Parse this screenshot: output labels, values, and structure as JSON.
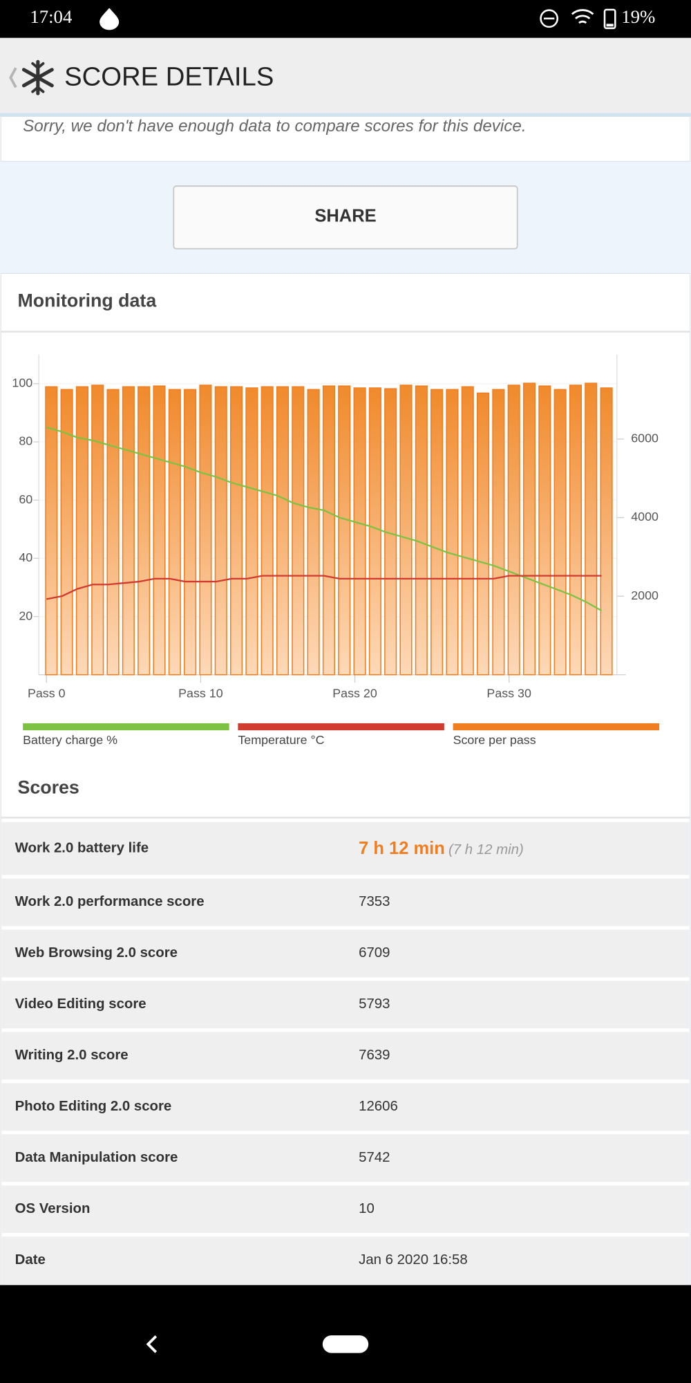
{
  "status_bar": {
    "time": "17:04",
    "battery": "19%"
  },
  "header": {
    "title": "SCORE DETAILS"
  },
  "notice": "Sorry, we don't have enough data to compare scores for this device.",
  "share_button": "SHARE",
  "monitoring": {
    "title": "Monitoring data"
  },
  "chart_data": {
    "type": "bar",
    "x": [
      0,
      1,
      2,
      3,
      4,
      5,
      6,
      7,
      8,
      9,
      10,
      11,
      12,
      13,
      14,
      15,
      16,
      17,
      18,
      19,
      20,
      21,
      22,
      23,
      24,
      25,
      26,
      27,
      28,
      29,
      30,
      31,
      32,
      33,
      34,
      35,
      36
    ],
    "xlim": [
      -0.5,
      37
    ],
    "xticks": [
      {
        "value": 0,
        "label": "Pass 0"
      },
      {
        "value": 10,
        "label": "Pass 10"
      },
      {
        "value": 20,
        "label": "Pass 20"
      },
      {
        "value": 30,
        "label": "Pass 30"
      }
    ],
    "ylim": [
      0,
      110
    ],
    "yticks": [
      20,
      40,
      60,
      80,
      100
    ],
    "y2lim": [
      0,
      8150
    ],
    "y2ticks": [
      2000,
      4000,
      6000
    ],
    "grid": true,
    "series": [
      {
        "name": "Battery charge %",
        "type": "line",
        "color": "#7dc243",
        "values": [
          85,
          83.5,
          81.5,
          80.5,
          79,
          77.5,
          76,
          74.5,
          73,
          71.5,
          69.5,
          68,
          66,
          64.5,
          63,
          61.5,
          59,
          57.5,
          56.5,
          54,
          52.5,
          51,
          49,
          47.5,
          46,
          44,
          42,
          40.5,
          39,
          37.5,
          35.5,
          33.5,
          31.5,
          29.5,
          27.5,
          25,
          22
        ]
      },
      {
        "name": "Temperature °C",
        "type": "line",
        "color": "#d03a2f",
        "values": [
          26,
          27,
          29.5,
          31,
          31,
          31.5,
          32,
          33,
          33,
          32,
          32,
          32,
          33,
          33,
          34,
          34,
          34,
          34,
          34,
          33,
          33,
          33,
          33,
          33,
          33,
          33,
          33,
          33,
          33,
          33,
          34,
          34,
          34,
          34,
          34,
          34,
          34
        ]
      },
      {
        "name": "Score per pass",
        "type": "bar",
        "axis": "y2",
        "color": "#f07d1f",
        "values": [
          7330,
          7260,
          7330,
          7370,
          7260,
          7330,
          7330,
          7350,
          7260,
          7260,
          7370,
          7330,
          7330,
          7300,
          7330,
          7330,
          7330,
          7260,
          7350,
          7350,
          7300,
          7300,
          7280,
          7370,
          7350,
          7260,
          7260,
          7330,
          7170,
          7260,
          7370,
          7420,
          7350,
          7260,
          7370,
          7420,
          7300
        ]
      }
    ]
  },
  "scores": {
    "title": "Scores",
    "rows": [
      {
        "label": "Work 2.0 battery life",
        "value": "7 h 12 min",
        "note": "(7 h 12 min)"
      },
      {
        "label": "Work 2.0 performance score",
        "value": "7353"
      },
      {
        "label": "Web Browsing 2.0 score",
        "value": "6709"
      },
      {
        "label": "Video Editing score",
        "value": "5793"
      },
      {
        "label": "Writing 2.0 score",
        "value": "7639"
      },
      {
        "label": "Photo Editing 2.0 score",
        "value": "12606"
      },
      {
        "label": "Data Manipulation score",
        "value": "5742"
      },
      {
        "label": "OS Version",
        "value": "10"
      },
      {
        "label": "Date",
        "value": "Jan 6 2020 16:58"
      }
    ]
  }
}
